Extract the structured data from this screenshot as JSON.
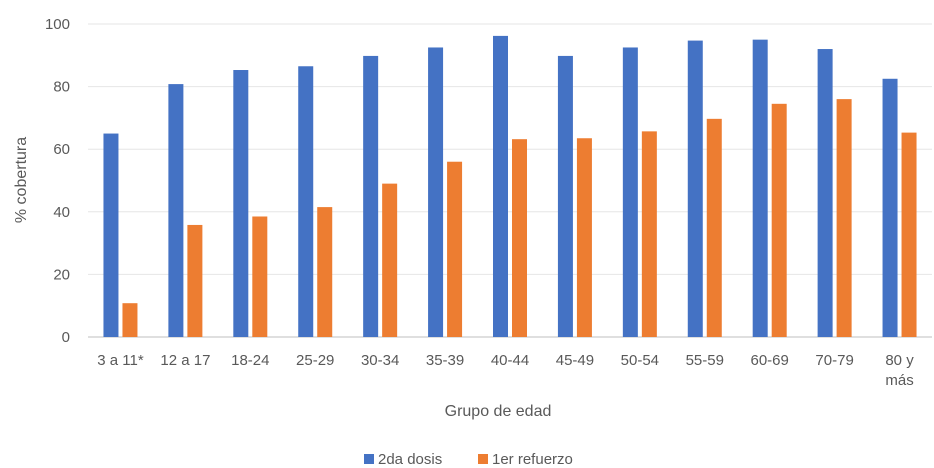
{
  "chart_data": {
    "type": "bar",
    "xlabel": "Grupo de edad",
    "ylabel": "% cobertura",
    "ylim": [
      0,
      100
    ],
    "yticks": [
      "0",
      "20",
      "40",
      "60",
      "80",
      "100"
    ],
    "categories": [
      "3 a 11*",
      "12 a 17",
      "18-24",
      "25-29",
      "30-34",
      "35-39",
      "40-44",
      "45-49",
      "50-54",
      "55-59",
      "60-69",
      "70-79",
      "80 y más"
    ],
    "category_lines": [
      [
        "3 a 11*"
      ],
      [
        "12 a 17"
      ],
      [
        "18-24"
      ],
      [
        "25-29"
      ],
      [
        "30-34"
      ],
      [
        "35-39"
      ],
      [
        "40-44"
      ],
      [
        "45-49"
      ],
      [
        "50-54"
      ],
      [
        "55-59"
      ],
      [
        "60-69"
      ],
      [
        "70-79"
      ],
      [
        "80 y",
        "más"
      ]
    ],
    "series": [
      {
        "name": "2da dosis",
        "color": "#4472C4",
        "values": [
          65,
          80.8,
          85.3,
          86.5,
          89.8,
          92.5,
          96.2,
          89.8,
          92.5,
          94.7,
          95,
          92,
          82.5
        ]
      },
      {
        "name": "1er refuerzo",
        "color": "#ED7D31",
        "values": [
          10.8,
          35.8,
          38.5,
          41.5,
          49,
          56,
          63.2,
          63.5,
          65.7,
          69.7,
          74.5,
          76,
          65.3
        ]
      }
    ],
    "grid": true,
    "gridline_color": "#e6e6e6",
    "legend_position": "bottom"
  }
}
